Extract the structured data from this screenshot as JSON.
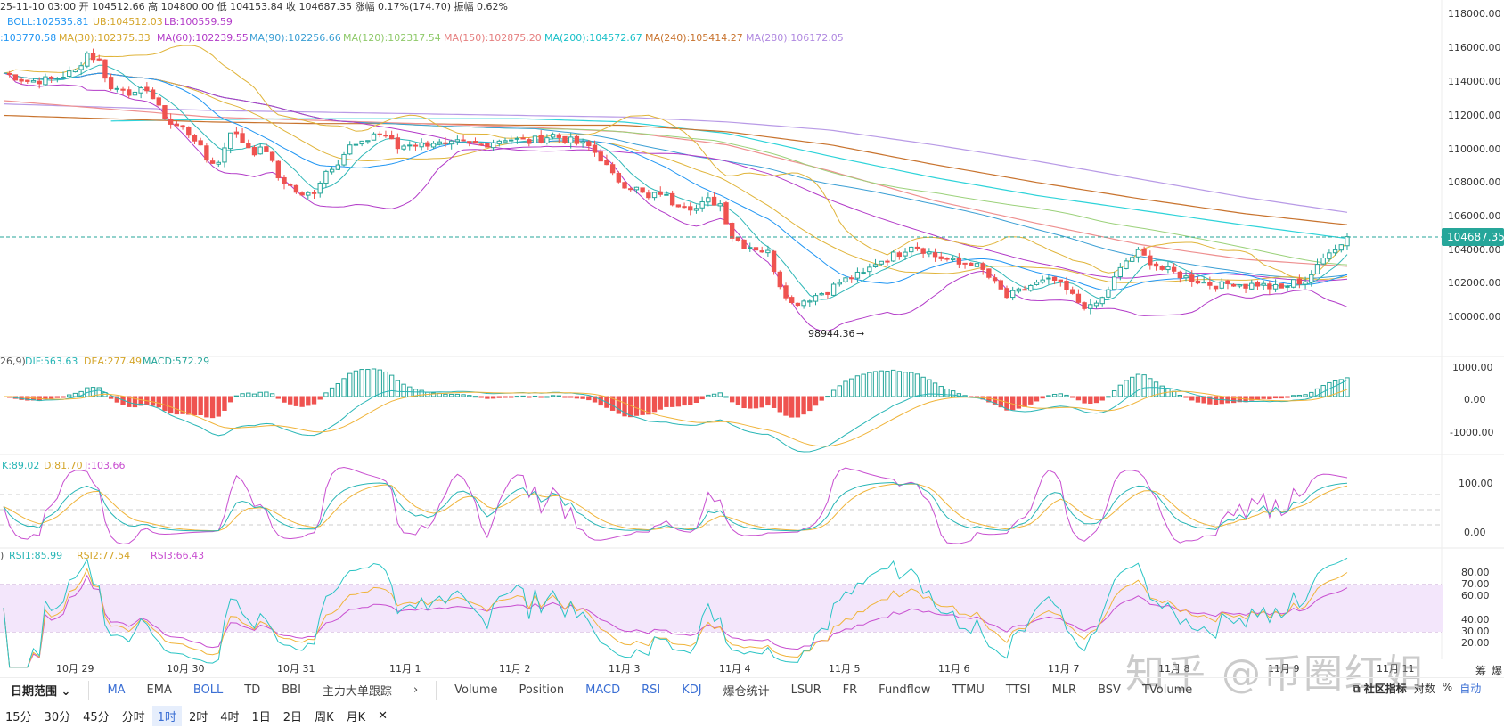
{
  "colors": {
    "up": "#26a69a",
    "down": "#ef5350",
    "boll_mid": "#2196f3",
    "boll_up": "#e0b43a",
    "boll_low": "#b23ac8",
    "ma30": "#e0b43a",
    "ma60": "#b23ac8",
    "ma90": "#3b9fd4",
    "ma120": "#9bd17a",
    "ma150": "#ee8f8f",
    "ma200": "#2ed3d9",
    "ma240": "#c8732e",
    "ma280": "#b89ae6",
    "dif": "#29b6b6",
    "dea": "#f0b43a",
    "kdj_k": "#29b6b6",
    "kdj_d": "#f0b43a",
    "kdj_j": "#c84fd0",
    "rsi1": "#29c4c4",
    "rsi2": "#f0b43a",
    "rsi3": "#c84fd0",
    "rsi_band": "#f3e6fb",
    "price_tag": "#26a69a"
  },
  "header": {
    "line1": "25-11-10 03:00  开 104512.66  高 104800.00  低 104153.84  收 104687.35  涨幅 0.17%(174.70)  振幅 0.62%",
    "boll": "BOLL:102535.81",
    "boll_ub": "UB:104512.03",
    "boll_lb": "LB:100559.59",
    "ma_prefix": ":103770.58",
    "ma30": "MA(30):102375.33",
    "ma60": "MA(60):102239.55",
    "ma90": "MA(90):102256.66",
    "ma120": "MA(120):102317.54",
    "ma150": "MA(150):102875.20",
    "ma200": "MA(200):104572.67",
    "ma240": "MA(240):105414.27",
    "ma280": "MA(280):106172.05"
  },
  "panels": {
    "macd": {
      "param": "26,9)",
      "dif": "DIF:563.63",
      "dea": "DEA:277.49",
      "macd": "MACD:572.29",
      "ticks": [
        "1000.00",
        "0.00",
        "-1000.00"
      ]
    },
    "kdj": {
      "k": "K:89.02",
      "d": "D:81.70",
      "j": "J:103.66",
      "ticks": [
        "100.00",
        "0.00"
      ]
    },
    "rsi": {
      "prefix": ")",
      "rsi1": "RSI1:85.99",
      "rsi2": "RSI2:77.54",
      "rsi3": "RSI3:66.43",
      "ticks": [
        "80.00",
        "70.00",
        "60.00",
        "40.00",
        "30.00",
        "20.00"
      ]
    }
  },
  "price_axis": {
    "ticks": [
      "118000.00",
      "116000.00",
      "114000.00",
      "112000.00",
      "110000.00",
      "108000.00",
      "106000.00",
      "104000.00",
      "102000.00",
      "100000.00"
    ],
    "current_price": "104687.35",
    "low_marker": "98944.36"
  },
  "x_axis": {
    "labels": [
      "10月 29",
      "10月 30",
      "10月 31",
      "11月 1",
      "11月 2",
      "11月 3",
      "11月 4",
      "11月 5",
      "11月 6",
      "11月 7",
      "11月 8",
      "11月 9",
      "11月 11"
    ]
  },
  "toolbar": {
    "date_range": "日期范围",
    "left_items": [
      "MA",
      "EMA",
      "BOLL",
      "TD",
      "BBI",
      "主力大单跟踪"
    ],
    "right_items": [
      "Volume",
      "Position",
      "MACD",
      "RSI",
      "KDJ",
      "爆仓统计",
      "LSUR",
      "FR",
      "Fundflow",
      "TTMU",
      "TTSI",
      "MLR",
      "BSV",
      "TVolume"
    ],
    "community": "社区指标",
    "log": "对数",
    "percent": "%",
    "auto": "自动",
    "extra1": "筹",
    "extra2": "爆"
  },
  "timeframes": [
    "15分",
    "30分",
    "45分",
    "分时",
    "1时",
    "2时",
    "4时",
    "1日",
    "2日",
    "周K",
    "月K"
  ],
  "active_timeframe": "1时",
  "watermark": "知乎 @币圈红姐",
  "chart_data": {
    "type": "line",
    "title": "",
    "candles_close_path": [
      [
        0,
        114700
      ],
      [
        4,
        114200
      ],
      [
        8,
        114300
      ],
      [
        12,
        114800
      ],
      [
        14,
        115900
      ],
      [
        16,
        115400
      ],
      [
        18,
        113700
      ],
      [
        20,
        113800
      ],
      [
        22,
        113300
      ],
      [
        24,
        113800
      ],
      [
        26,
        112500
      ],
      [
        28,
        111600
      ],
      [
        30,
        111300
      ],
      [
        32,
        110700
      ],
      [
        34,
        109400
      ],
      [
        36,
        109200
      ],
      [
        38,
        111200
      ],
      [
        40,
        110500
      ],
      [
        42,
        109900
      ],
      [
        44,
        110000
      ],
      [
        46,
        108300
      ],
      [
        48,
        107800
      ],
      [
        50,
        107100
      ],
      [
        52,
        107500
      ],
      [
        54,
        108700
      ],
      [
        56,
        109300
      ],
      [
        58,
        110200
      ],
      [
        60,
        110300
      ],
      [
        62,
        111000
      ],
      [
        64,
        110900
      ],
      [
        66,
        110100
      ],
      [
        68,
        110400
      ],
      [
        70,
        110300
      ],
      [
        72,
        110500
      ],
      [
        74,
        110200
      ],
      [
        76,
        110400
      ],
      [
        80,
        110300
      ],
      [
        84,
        110700
      ],
      [
        88,
        110500
      ],
      [
        92,
        110900
      ],
      [
        96,
        110400
      ],
      [
        98,
        110200
      ],
      [
        100,
        109500
      ],
      [
        102,
        108400
      ],
      [
        104,
        107900
      ],
      [
        106,
        107600
      ],
      [
        108,
        107000
      ],
      [
        110,
        107400
      ],
      [
        112,
        106800
      ],
      [
        114,
        106700
      ],
      [
        116,
        106400
      ],
      [
        118,
        106900
      ],
      [
        120,
        106700
      ],
      [
        122,
        104700
      ],
      [
        124,
        104200
      ],
      [
        126,
        104000
      ],
      [
        128,
        103700
      ],
      [
        130,
        101800
      ],
      [
        132,
        100600
      ],
      [
        134,
        100800
      ],
      [
        136,
        101100
      ],
      [
        138,
        101400
      ],
      [
        140,
        101900
      ],
      [
        142,
        102200
      ],
      [
        144,
        102400
      ],
      [
        146,
        103100
      ],
      [
        148,
        103400
      ],
      [
        150,
        103700
      ],
      [
        152,
        104200
      ],
      [
        154,
        103900
      ],
      [
        156,
        103500
      ],
      [
        158,
        103300
      ],
      [
        160,
        103000
      ],
      [
        162,
        103100
      ],
      [
        164,
        102600
      ],
      [
        166,
        101800
      ],
      [
        168,
        101000
      ],
      [
        170,
        101300
      ],
      [
        172,
        101700
      ],
      [
        174,
        101900
      ],
      [
        176,
        102000
      ],
      [
        178,
        101400
      ],
      [
        180,
        100700
      ],
      [
        182,
        100300
      ],
      [
        184,
        100900
      ],
      [
        186,
        102100
      ],
      [
        188,
        103200
      ],
      [
        190,
        103700
      ],
      [
        192,
        103200
      ],
      [
        194,
        102700
      ],
      [
        196,
        102500
      ],
      [
        198,
        102200
      ],
      [
        200,
        102000
      ],
      [
        202,
        101800
      ],
      [
        204,
        101700
      ],
      [
        206,
        101900
      ],
      [
        208,
        101700
      ],
      [
        210,
        101800
      ],
      [
        212,
        101600
      ],
      [
        214,
        101500
      ],
      [
        216,
        101900
      ],
      [
        218,
        102000
      ],
      [
        220,
        102800
      ],
      [
        222,
        103900
      ],
      [
        224,
        104200
      ],
      [
        225,
        104687.35
      ]
    ],
    "ylim": [
      99000,
      118500
    ],
    "x_categories": [
      "10月 29",
      "10月 30",
      "10月 31",
      "11月 1",
      "11月 2",
      "11月 3",
      "11月 4",
      "11月 5",
      "11月 6",
      "11月 7",
      "11月 8",
      "11月 9",
      "11月 11"
    ],
    "ma_series": [
      {
        "name": "MA(200)",
        "values": [
          111400,
          111750,
          111850,
          111900,
          111900,
          111900,
          111700,
          111000,
          109600,
          108300,
          107200,
          106300,
          105400,
          104572.67
        ]
      },
      {
        "name": "MA(240)",
        "values": [
          112100,
          111900,
          111700,
          111600,
          111600,
          111500,
          111500,
          111100,
          110300,
          109100,
          108000,
          107000,
          106100,
          105414.27
        ]
      },
      {
        "name": "MA(280)",
        "values": [
          112800,
          112600,
          112400,
          112300,
          112200,
          112100,
          112000,
          111700,
          111200,
          110300,
          109300,
          108200,
          107100,
          106172.05
        ]
      },
      {
        "name": "MA(150)",
        "values": [
          113000,
          112500,
          112000,
          111800,
          111600,
          111400,
          111100,
          110300,
          108700,
          106900,
          105500,
          104200,
          103300,
          102875.2
        ]
      }
    ]
  }
}
